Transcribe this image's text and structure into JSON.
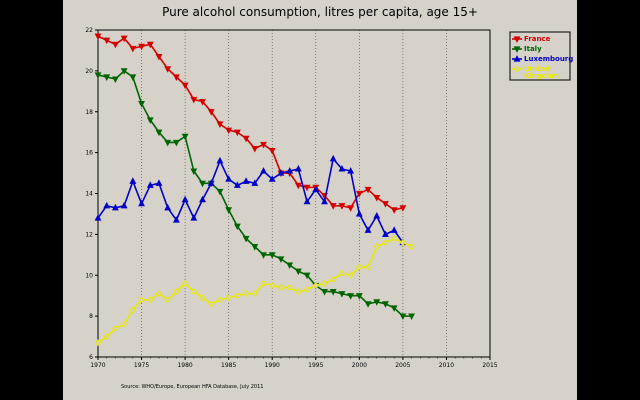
{
  "chart_data": {
    "type": "line",
    "title": "Pure alcohol consumption, litres per capita, age 15+",
    "source": "Source: WHO/Europe, European HFA Database, July 2011",
    "xlabel": "",
    "ylabel": "",
    "xlim": [
      1970,
      2015
    ],
    "ylim": [
      6,
      22
    ],
    "xticks": [
      1970,
      1975,
      1980,
      1985,
      1990,
      1995,
      2000,
      2005,
      2010,
      2015
    ],
    "yticks": [
      6,
      8,
      10,
      12,
      14,
      16,
      18,
      20,
      22
    ],
    "grid": "vertical",
    "legend_position": "top-right",
    "series": [
      {
        "name": "France",
        "color": "#d40000",
        "marker": "down-triangle",
        "x": [
          1970,
          1971,
          1972,
          1973,
          1974,
          1975,
          1976,
          1977,
          1978,
          1979,
          1980,
          1981,
          1982,
          1983,
          1984,
          1985,
          1986,
          1987,
          1988,
          1989,
          1990,
          1991,
          1992,
          1993,
          1994,
          1995,
          1996,
          1997,
          1998,
          1999,
          2000,
          2001,
          2002,
          2003,
          2004,
          2005
        ],
        "values": [
          21.7,
          21.5,
          21.3,
          21.6,
          21.1,
          21.2,
          21.3,
          20.7,
          20.1,
          19.7,
          19.3,
          18.6,
          18.5,
          18.0,
          17.4,
          17.1,
          17.0,
          16.7,
          16.2,
          16.4,
          16.1,
          15.0,
          15.0,
          14.4,
          14.3,
          14.3,
          13.9,
          13.4,
          13.4,
          13.3,
          14.0,
          14.2,
          13.8,
          13.5,
          13.2,
          13.3
        ]
      },
      {
        "name": "Italy",
        "color": "#006400",
        "marker": "down-triangle",
        "x": [
          1970,
          1971,
          1972,
          1973,
          1974,
          1975,
          1976,
          1977,
          1978,
          1979,
          1980,
          1981,
          1982,
          1983,
          1984,
          1985,
          1986,
          1987,
          1988,
          1989,
          1990,
          1991,
          1992,
          1993,
          1994,
          1995,
          1996,
          1997,
          1998,
          1999,
          2000,
          2001,
          2002,
          2003,
          2004,
          2005,
          2006
        ],
        "values": [
          19.8,
          19.7,
          19.6,
          20.0,
          19.7,
          18.4,
          17.6,
          17.0,
          16.5,
          16.5,
          16.8,
          15.1,
          14.5,
          14.5,
          14.1,
          13.2,
          12.4,
          11.8,
          11.4,
          11.0,
          11.0,
          10.8,
          10.5,
          10.2,
          10.0,
          9.5,
          9.2,
          9.2,
          9.1,
          9.0,
          9.0,
          8.6,
          8.7,
          8.6,
          8.4,
          8.0,
          8.0
        ]
      },
      {
        "name": "Luxembourg",
        "color": "#0000c8",
        "marker": "up-triangle",
        "x": [
          1970,
          1971,
          1972,
          1973,
          1974,
          1975,
          1976,
          1977,
          1978,
          1979,
          1980,
          1981,
          1982,
          1983,
          1984,
          1985,
          1986,
          1987,
          1988,
          1989,
          1990,
          1991,
          1992,
          1993,
          1994,
          1995,
          1996,
          1997,
          1998,
          1999,
          2000,
          2001,
          2002,
          2003,
          2004,
          2005
        ],
        "values": [
          12.8,
          13.4,
          13.3,
          13.4,
          14.6,
          13.5,
          14.4,
          14.5,
          13.3,
          12.7,
          13.7,
          12.8,
          13.7,
          14.5,
          15.6,
          14.7,
          14.4,
          14.6,
          14.5,
          15.1,
          14.7,
          15.0,
          15.1,
          15.2,
          13.6,
          14.2,
          13.6,
          15.7,
          15.2,
          15.1,
          13.0,
          12.2,
          12.9,
          12.0,
          12.2,
          11.6
        ]
      },
      {
        "name": "United Kingdom",
        "color": "#e8e800",
        "marker": "diamond",
        "x": [
          1970,
          1971,
          1972,
          1973,
          1974,
          1975,
          1976,
          1977,
          1978,
          1979,
          1980,
          1981,
          1982,
          1983,
          1984,
          1985,
          1986,
          1987,
          1988,
          1989,
          1990,
          1991,
          1992,
          1993,
          1994,
          1995,
          1996,
          1997,
          1998,
          1999,
          2000,
          2001,
          2002,
          2003,
          2004,
          2005,
          2006
        ],
        "values": [
          6.7,
          7.0,
          7.4,
          7.6,
          8.3,
          8.8,
          8.8,
          9.1,
          8.8,
          9.2,
          9.6,
          9.2,
          8.9,
          8.6,
          8.8,
          8.9,
          9.0,
          9.1,
          9.1,
          9.6,
          9.5,
          9.4,
          9.4,
          9.2,
          9.3,
          9.5,
          9.6,
          9.8,
          10.1,
          10.0,
          10.4,
          10.4,
          11.4,
          11.6,
          11.8,
          11.6,
          11.4
        ]
      }
    ]
  }
}
